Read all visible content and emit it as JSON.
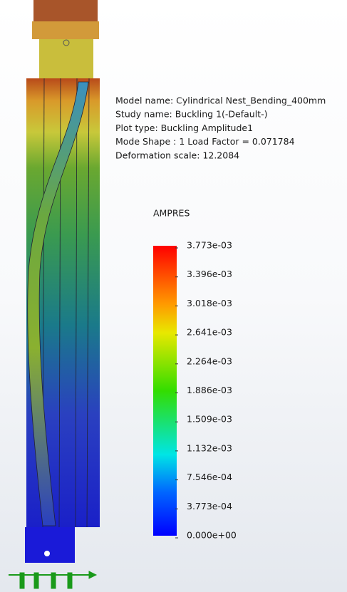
{
  "info": [
    "Model name: Cylindrical Nest_Bending_400mm",
    "Study name: Buckling 1(-Default-)",
    "Plot type: Buckling Amplitude1",
    "Mode Shape : 1  Load Factor = 0.071784",
    "Deformation scale: 12.2084"
  ],
  "legend": {
    "title": "AMPRES",
    "labels": [
      "3.773e-03",
      "3.396e-03",
      "3.018e-03",
      "2.641e-03",
      "2.264e-03",
      "1.886e-03",
      "1.509e-03",
      "1.132e-03",
      "7.546e-04",
      "3.773e-04",
      "0.000e+00"
    ]
  }
}
